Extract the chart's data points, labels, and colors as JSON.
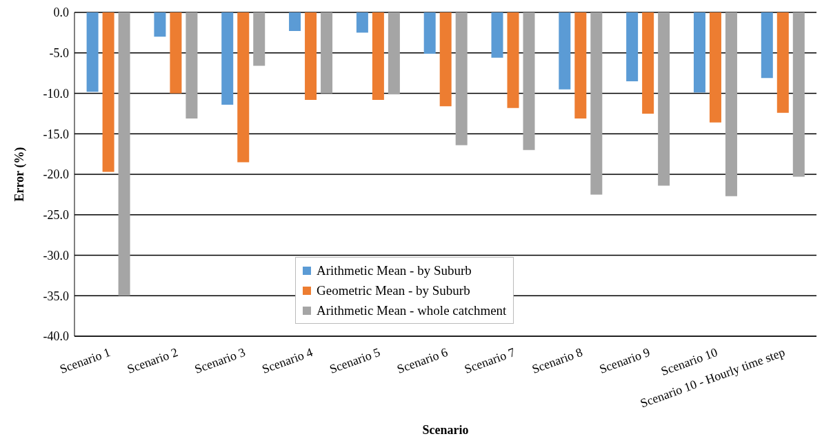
{
  "chart_data": {
    "type": "bar",
    "xlabel": "Scenario",
    "ylabel": "Error (%)",
    "categories": [
      "Scenario 1",
      "Scenario 2",
      "Scenario 3",
      "Scenario 4",
      "Scenario 5",
      "Scenario 6",
      "Scenario 7",
      "Scenario 8",
      "Scenario 9",
      "Scenario 10",
      "Scenario 10 - Hourly time step"
    ],
    "series": [
      {
        "name": "Arithmetic Mean - by Suburb",
        "color": "#5b9bd5",
        "values": [
          -9.8,
          -3.0,
          -11.4,
          -2.3,
          -2.5,
          -5.1,
          -5.6,
          -9.5,
          -8.5,
          -9.9,
          -8.1
        ]
      },
      {
        "name": "Geometric Mean - by Suburb",
        "color": "#ed7d31",
        "values": [
          -19.7,
          -10.0,
          -18.5,
          -10.8,
          -10.8,
          -11.6,
          -11.8,
          -13.1,
          -12.5,
          -13.6,
          -12.4
        ]
      },
      {
        "name": "Arithmetic Mean - whole catchment",
        "color": "#a5a5a5",
        "values": [
          -35.0,
          -13.1,
          -6.6,
          -10.0,
          -10.1,
          -16.4,
          -17.0,
          -22.5,
          -21.4,
          -22.7,
          -20.3
        ]
      }
    ],
    "ylim": [
      -40,
      0
    ],
    "yticks": [
      {
        "value": -40,
        "label": "-40.0"
      },
      {
        "value": -35,
        "label": "-35.0"
      },
      {
        "value": -30,
        "label": "-30.0"
      },
      {
        "value": -25,
        "label": "-25.0"
      },
      {
        "value": -20,
        "label": "-20.0"
      },
      {
        "value": -15,
        "label": "-15.0"
      },
      {
        "value": -10,
        "label": "-10.0"
      },
      {
        "value": -5,
        "label": "-5.0"
      },
      {
        "value": 0,
        "label": "0.0"
      }
    ],
    "grid": "y",
    "legend": "bottom"
  }
}
